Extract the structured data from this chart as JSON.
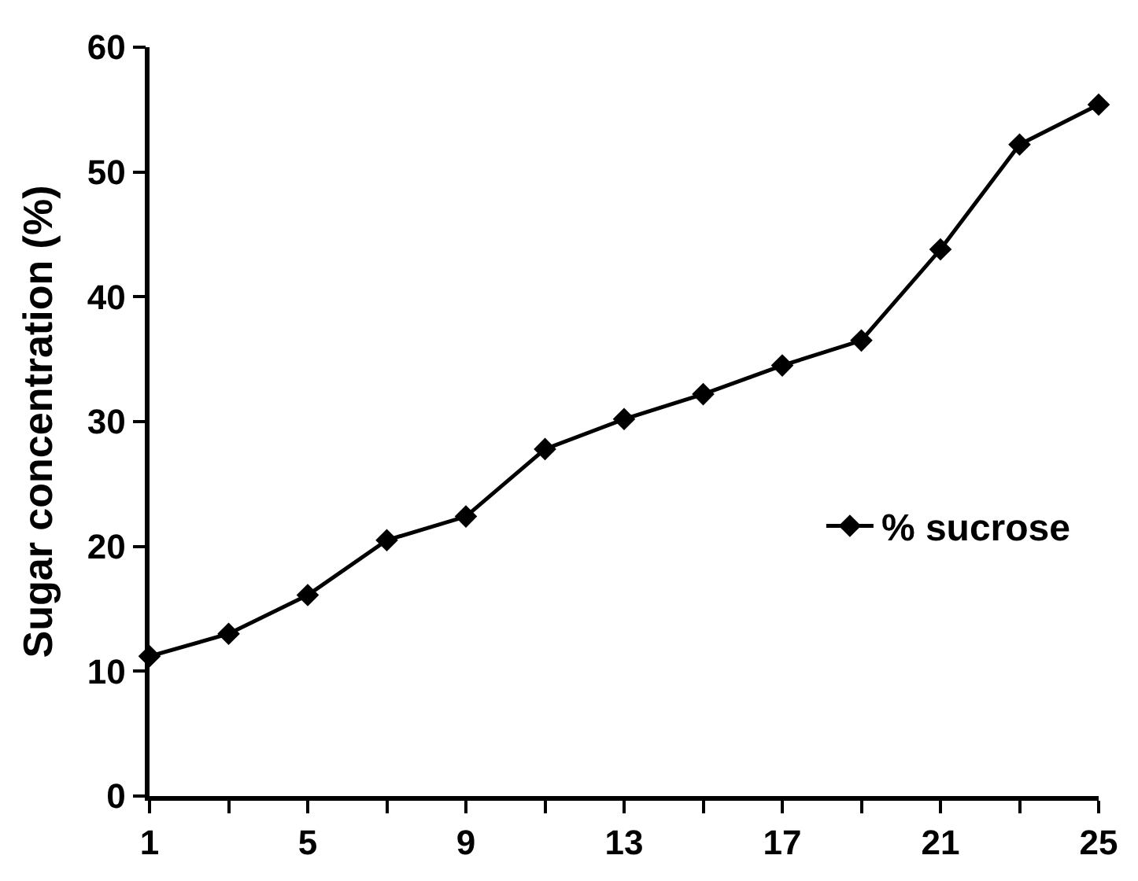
{
  "chart_data": {
    "type": "line",
    "ylabel": "Sugar concentration (%)",
    "x": [
      1,
      3,
      5,
      7,
      9,
      11,
      13,
      15,
      17,
      19,
      21,
      23,
      25
    ],
    "series": [
      {
        "name": "% sucrose",
        "color": "#000000",
        "values": [
          11.2,
          13.0,
          16.1,
          20.5,
          22.4,
          27.8,
          30.2,
          32.2,
          34.5,
          36.5,
          43.8,
          52.2,
          55.4
        ]
      }
    ],
    "xlim": [
      1,
      25
    ],
    "xticks": [
      1,
      {
        "value": 3,
        "label": null
      },
      5,
      {
        "value": 7,
        "label": null
      },
      9,
      {
        "value": 11,
        "label": null
      },
      13,
      {
        "value": 15,
        "label": null
      },
      17,
      {
        "value": 19,
        "label": null
      },
      21,
      {
        "value": 23,
        "label": null
      },
      25
    ],
    "ylim": [
      0,
      60
    ],
    "yticks": [
      0,
      10,
      20,
      30,
      40,
      50,
      60
    ],
    "legend": "right",
    "marker": "diamond",
    "line_style": "solid"
  }
}
